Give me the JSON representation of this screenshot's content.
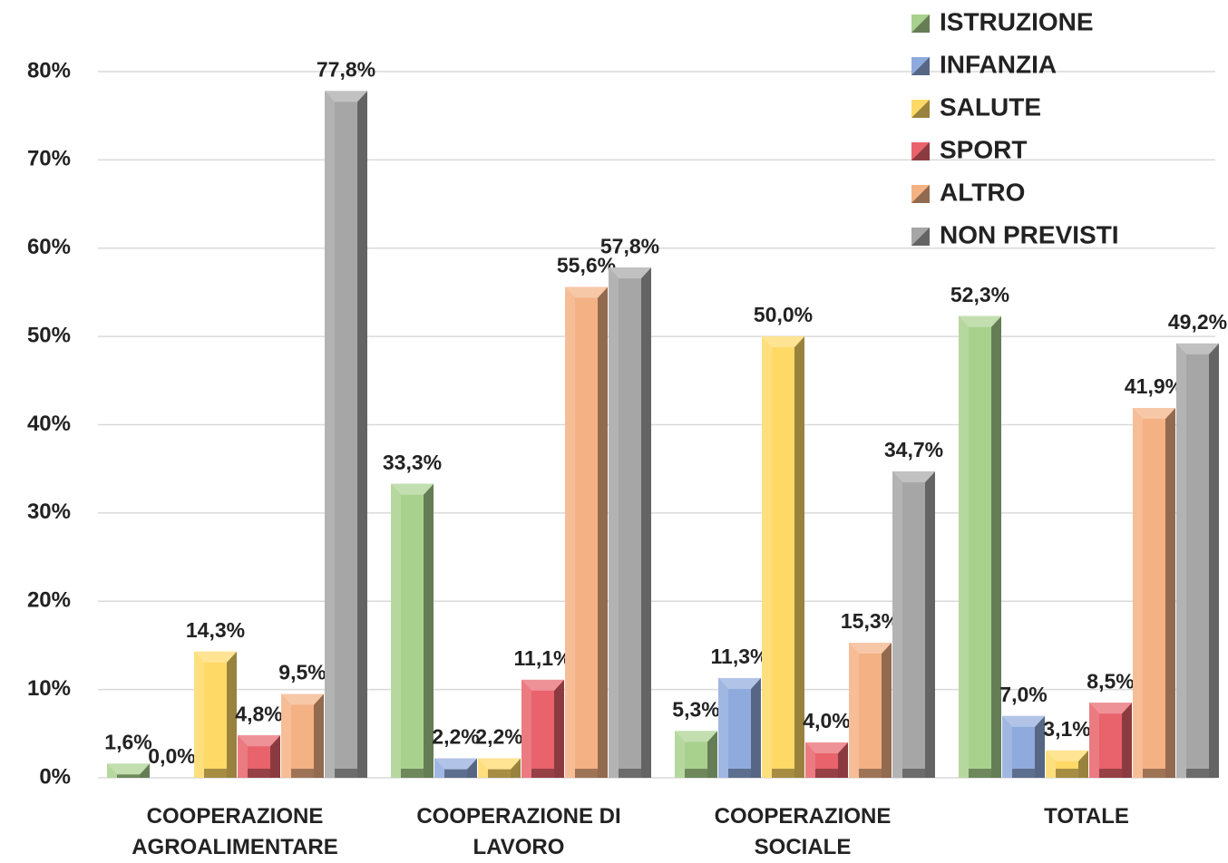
{
  "chart_data": {
    "type": "bar",
    "categories": [
      "COOPERAZIONE AGROALIMENTARE",
      "COOPERAZIONE DI LAVORO",
      "COOPERAZIONE SOCIALE",
      "TOTALE"
    ],
    "series": [
      {
        "name": "ISTRUZIONE",
        "color": "#a9d18e",
        "values": [
          1.6,
          33.3,
          5.3,
          52.3
        ],
        "value_labels": [
          "1,6%",
          "33,3%",
          "5,3%",
          "52,3%"
        ]
      },
      {
        "name": "INFANZIA",
        "color": "#8faadc",
        "values": [
          0.0,
          2.2,
          11.3,
          7.0
        ],
        "value_labels": [
          "0,0%",
          "2,2%",
          "11,3%",
          "7,0%"
        ]
      },
      {
        "name": "SALUTE",
        "color": "#ffd966",
        "values": [
          14.3,
          2.2,
          50.0,
          3.1
        ],
        "value_labels": [
          "14,3%",
          "2,2%",
          "50,0%",
          "3,1%"
        ]
      },
      {
        "name": "SPORT",
        "color": "#e8636b",
        "values": [
          4.8,
          11.1,
          4.0,
          8.5
        ],
        "value_labels": [
          "4,8%",
          "11,1%",
          "4,0%",
          "8,5%"
        ]
      },
      {
        "name": "ALTRO",
        "color": "#f4b183",
        "values": [
          9.5,
          55.6,
          15.3,
          41.9
        ],
        "value_labels": [
          "9,5%",
          "55,6%",
          "15,3%",
          "41,9%"
        ]
      },
      {
        "name": "NON PREVISTI",
        "color": "#a6a6a6",
        "values": [
          77.8,
          57.8,
          34.7,
          49.2
        ],
        "value_labels": [
          "77,8%",
          "57,8%",
          "34,7%",
          "49,2%"
        ]
      }
    ],
    "ylim": [
      0,
      80
    ],
    "yticks": [
      {
        "value": 0,
        "label": "0%"
      },
      {
        "value": 10,
        "label": "10%"
      },
      {
        "value": 20,
        "label": "20%"
      },
      {
        "value": 30,
        "label": "30%"
      },
      {
        "value": 40,
        "label": "40%"
      },
      {
        "value": 50,
        "label": "50%"
      },
      {
        "value": 60,
        "label": "60%"
      },
      {
        "value": 70,
        "label": "70%"
      },
      {
        "value": 80,
        "label": "80%"
      }
    ],
    "grid": true,
    "legend": "top-right"
  }
}
